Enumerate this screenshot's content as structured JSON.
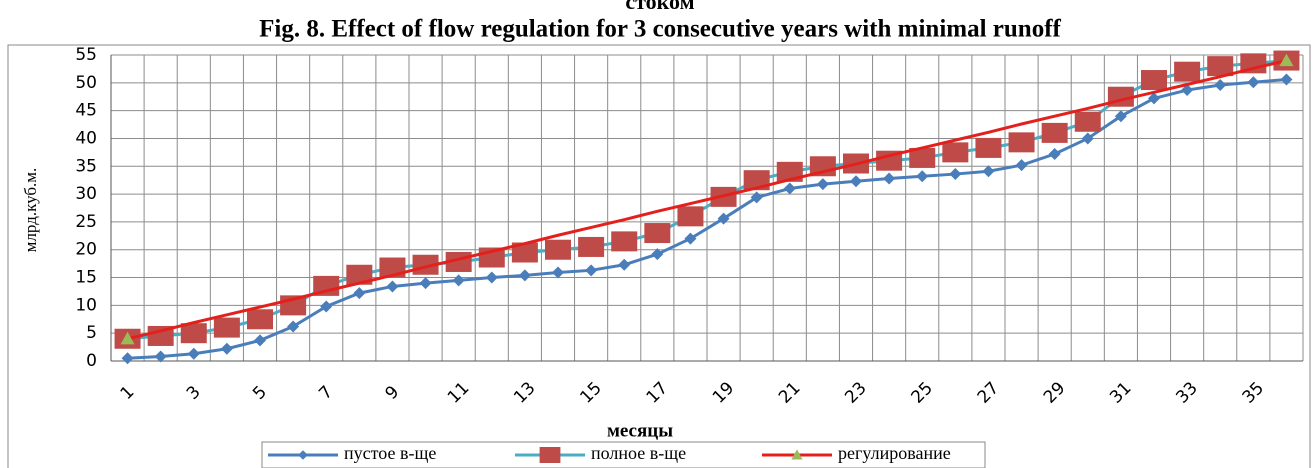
{
  "chart_data": {
    "type": "line",
    "subtitle": "стоком",
    "title": "Fig. 8. Effect of flow regulation for 3 consecutive years with minimal runoff",
    "x_label": "месяцы",
    "y_label": "млрд.куб.м.",
    "categories": [
      1,
      null,
      3,
      null,
      5,
      null,
      7,
      null,
      9,
      null,
      11,
      null,
      13,
      null,
      15,
      null,
      17,
      null,
      19,
      null,
      21,
      null,
      23,
      null,
      25,
      null,
      27,
      null,
      29,
      null,
      31,
      null,
      33,
      null,
      35,
      null
    ],
    "ylim": [
      0,
      55
    ],
    "yticks": [
      0,
      5,
      10,
      15,
      20,
      25,
      30,
      35,
      40,
      45,
      50,
      55
    ],
    "grid": true,
    "legend": "bottom",
    "series": [
      {
        "name": "пустое в-ще",
        "color": "#4a7ebb",
        "marker": "diamond",
        "values": [
          0.5,
          0.8,
          1.3,
          2.2,
          3.7,
          6.2,
          9.8,
          12.2,
          13.4,
          14,
          14.5,
          15,
          15.4,
          15.9,
          16.3,
          17.3,
          19.2,
          22,
          25.6,
          29.4,
          31,
          31.8,
          32.3,
          32.8,
          33.2,
          33.6,
          34.1,
          35.2,
          37.2,
          40,
          44,
          47.2,
          48.7,
          49.6,
          50.1,
          50.6
        ]
      },
      {
        "name": "полное в-ще",
        "color": "#4bacc6",
        "marker_color": "#be4b48",
        "marker": "square",
        "values": [
          4,
          4.5,
          5,
          6,
          7.5,
          10,
          13.5,
          15.5,
          16.8,
          17.3,
          17.8,
          18.6,
          19.5,
          20,
          20.5,
          21.5,
          23,
          26,
          29.5,
          32.5,
          34,
          35,
          35.5,
          36,
          36.5,
          37.5,
          38.3,
          39.3,
          41,
          43,
          47.5,
          50.5,
          52,
          53,
          53.5,
          54
        ]
      },
      {
        "name": "регулирование",
        "color": "#e3201c",
        "marker_color": "#9bbb59",
        "marker": "triangle-ends",
        "values": [
          4,
          5.4,
          6.9,
          8.3,
          9.7,
          11.1,
          12.6,
          14,
          15.4,
          16.9,
          18.3,
          19.7,
          21.1,
          22.6,
          24,
          25.4,
          26.9,
          28.3,
          29.7,
          31.1,
          32.6,
          34,
          35.4,
          36.9,
          38.3,
          39.7,
          41.1,
          42.6,
          44,
          45.4,
          46.9,
          48.3,
          49.7,
          51.1,
          52.6,
          54
        ]
      }
    ]
  }
}
